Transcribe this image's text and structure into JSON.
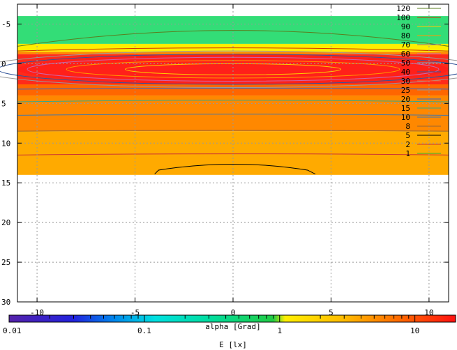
{
  "chart_data": {
    "type": "heatmap",
    "title": "",
    "xlabel": "alpha [Grad]",
    "colorbar_label": "E [lx]",
    "xlim": [
      -11,
      11
    ],
    "ylim": [
      30,
      -7.5
    ],
    "x_ticks": [
      -10,
      -5,
      0,
      5,
      10
    ],
    "y_ticks": [
      -5,
      0,
      5,
      10,
      15,
      20,
      25,
      30
    ],
    "x_tick_labels": [
      "-10",
      "-5",
      "0",
      "5",
      "10"
    ],
    "y_tick_labels": [
      "-5",
      "0",
      "5",
      "10",
      "15",
      "20",
      "25",
      "30"
    ],
    "grid": true,
    "data_extent": {
      "x": [
        -11,
        11
      ],
      "y": [
        -6,
        14
      ]
    },
    "bands": [
      {
        "y_from": -6,
        "y_to": -2.5,
        "color": "#33dd77"
      },
      {
        "y_from": -2.5,
        "y_to": -1.5,
        "color": "#ffee00"
      },
      {
        "y_from": -1.5,
        "y_to": -1.2,
        "color": "#ff8800"
      },
      {
        "y_from": -1.2,
        "y_to": 2.6,
        "color": "#ff2a1a"
      },
      {
        "y_from": 2.6,
        "y_to": 4,
        "color": "#ff6600"
      },
      {
        "y_from": 4,
        "y_to": 8.5,
        "color": "#ff8800"
      },
      {
        "y_from": 8.5,
        "y_to": 14,
        "color": "#ffaa00"
      }
    ],
    "contour_levels": [
      {
        "level": "120",
        "color": "#5a7e1e"
      },
      {
        "level": "100",
        "color": "#cc3300"
      },
      {
        "level": "90",
        "color": "#ffcc00"
      },
      {
        "level": "80",
        "color": "#ff9900"
      },
      {
        "level": "70",
        "color": "#5a6eb0"
      },
      {
        "level": "60",
        "color": "#cc66aa"
      },
      {
        "level": "50",
        "color": "#66aacc"
      },
      {
        "level": "40",
        "color": "#335599"
      },
      {
        "level": "30",
        "color": "#ff6633"
      },
      {
        "level": "25",
        "color": "#999999"
      },
      {
        "level": "20",
        "color": "#3366cc"
      },
      {
        "level": "15",
        "color": "#33aa88"
      },
      {
        "level": "10",
        "color": "#4477aa"
      },
      {
        "level": "8",
        "color": "#996633"
      },
      {
        "level": "5",
        "color": "#000000"
      },
      {
        "level": "2",
        "color": "#cc3333"
      },
      {
        "level": "1",
        "color": "#33aa33"
      }
    ],
    "colorbar": {
      "scale": "log",
      "range": [
        0.01,
        20
      ],
      "ticks": [
        0.01,
        0.1,
        1,
        10
      ],
      "tick_labels": [
        "0.01",
        "0.1",
        "1",
        "10"
      ],
      "stops": [
        {
          "value": 0.01,
          "color": "#5522aa"
        },
        {
          "value": 0.03,
          "color": "#2222dd"
        },
        {
          "value": 0.06,
          "color": "#0088ee"
        },
        {
          "value": 0.12,
          "color": "#00e0e0"
        },
        {
          "value": 0.3,
          "color": "#00dda0"
        },
        {
          "value": 0.9,
          "color": "#22cc44"
        },
        {
          "value": 1.1,
          "color": "#ffee00"
        },
        {
          "value": 3,
          "color": "#ffbb00"
        },
        {
          "value": 8,
          "color": "#ff6600"
        },
        {
          "value": 20,
          "color": "#ff1111"
        }
      ]
    }
  }
}
